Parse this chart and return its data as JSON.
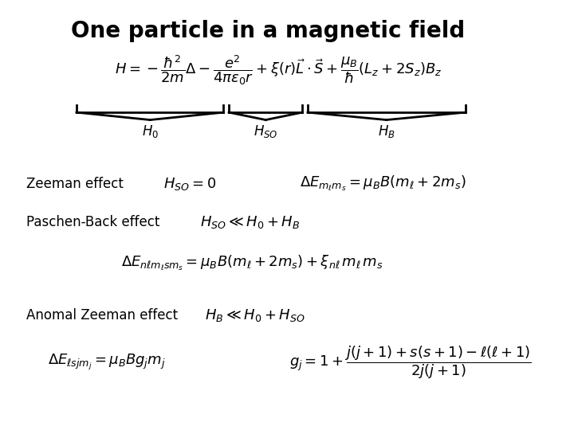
{
  "title": "One particle in a magnetic field",
  "title_fontsize": 20,
  "title_bold": true,
  "bg_color": "#ffffff",
  "text_color": "#000000",
  "zeeman_label": "Zeeman effect",
  "paschen_label": "Paschen-Back effect",
  "anomal_label": "Anomal Zeeman effect"
}
